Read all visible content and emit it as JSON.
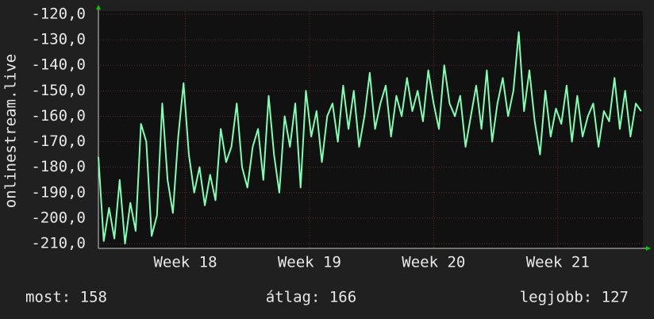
{
  "chart_data": {
    "type": "line",
    "y_label": "onlinestream.live",
    "x": [
      0,
      0.3,
      0.6,
      0.9,
      1.2,
      1.5,
      1.8,
      2.1,
      2.4,
      2.7,
      3,
      3.3,
      3.6,
      3.9,
      4.2,
      4.5,
      4.8,
      5.1,
      5.4,
      5.7,
      6,
      6.3,
      6.6,
      6.9,
      7.2,
      7.5,
      7.8,
      8.1,
      8.4,
      8.7,
      9,
      9.3,
      9.6,
      9.9,
      10.2,
      10.5,
      10.8,
      11.1,
      11.4,
      11.7,
      12,
      12.3,
      12.6,
      12.9,
      13.2,
      13.5,
      13.8,
      14.1,
      14.4,
      14.7,
      15,
      15.3,
      15.6,
      15.9,
      16.2,
      16.5,
      16.8,
      17.1,
      17.4,
      17.7,
      18,
      18.3,
      18.6,
      18.9,
      19.2,
      19.5,
      19.8,
      20.1,
      20.4,
      20.7,
      21,
      21.3,
      21.6,
      21.9,
      22.2,
      22.5,
      22.8,
      23.1,
      23.4,
      23.7,
      24,
      24.3,
      24.6,
      24.9,
      25.2,
      25.5,
      25.8,
      26.1,
      26.4,
      26.7,
      27,
      27.3,
      27.6,
      27.9,
      28.2,
      28.5,
      28.8,
      29.1,
      29.4,
      29.7,
      30,
      30.3,
      30.6
    ],
    "series": [
      {
        "color": "#80ffb4",
        "values": [
          -176,
          -209,
          -196,
          -208,
          -185,
          -210,
          -194,
          -205,
          -163,
          -170,
          -207,
          -199,
          -155,
          -185,
          -198,
          -168,
          -147,
          -175,
          -190,
          -180,
          -195,
          -183,
          -193,
          -165,
          -178,
          -172,
          -155,
          -180,
          -188,
          -172,
          -165,
          -185,
          -152,
          -175,
          -190,
          -160,
          -172,
          -155,
          -188,
          -150,
          -168,
          -158,
          -178,
          -160,
          -155,
          -170,
          -148,
          -165,
          -150,
          -172,
          -160,
          -143,
          -165,
          -155,
          -148,
          -168,
          -152,
          -160,
          -145,
          -158,
          -150,
          -162,
          -142,
          -155,
          -165,
          -140,
          -155,
          -160,
          -152,
          -172,
          -160,
          -148,
          -165,
          -142,
          -170,
          -155,
          -145,
          -160,
          -150,
          -127,
          -158,
          -142,
          -162,
          -175,
          -150,
          -168,
          -157,
          -163,
          -148,
          -170,
          -152,
          -168,
          -160,
          -155,
          -172,
          -158,
          -162,
          -145,
          -165,
          -150,
          -168,
          -155,
          -158
        ]
      }
    ],
    "xlim": [
      0,
      30.7
    ],
    "xticks": [
      {
        "value": 4.9,
        "label": "Week 18"
      },
      {
        "value": 11.9,
        "label": "Week 19"
      },
      {
        "value": 18.9,
        "label": "Week 20"
      },
      {
        "value": 25.9,
        "label": "Week 21"
      }
    ],
    "ylim": [
      -210,
      -120
    ],
    "yticks": [
      {
        "value": -210,
        "label": "-210,0"
      },
      {
        "value": -200,
        "label": "-200,0"
      },
      {
        "value": -190,
        "label": "-190,0"
      },
      {
        "value": -180,
        "label": "-180,0"
      },
      {
        "value": -170,
        "label": "-170,0"
      },
      {
        "value": -160,
        "label": "-160,0"
      },
      {
        "value": -150,
        "label": "-150,0"
      },
      {
        "value": -140,
        "label": "-140,0"
      },
      {
        "value": -130,
        "label": "-130,0"
      },
      {
        "value": -120,
        "label": "-120,0"
      }
    ],
    "grid": true,
    "footer": [
      "most: 158",
      "átlag: 166",
      "legjobb: 127"
    ]
  }
}
